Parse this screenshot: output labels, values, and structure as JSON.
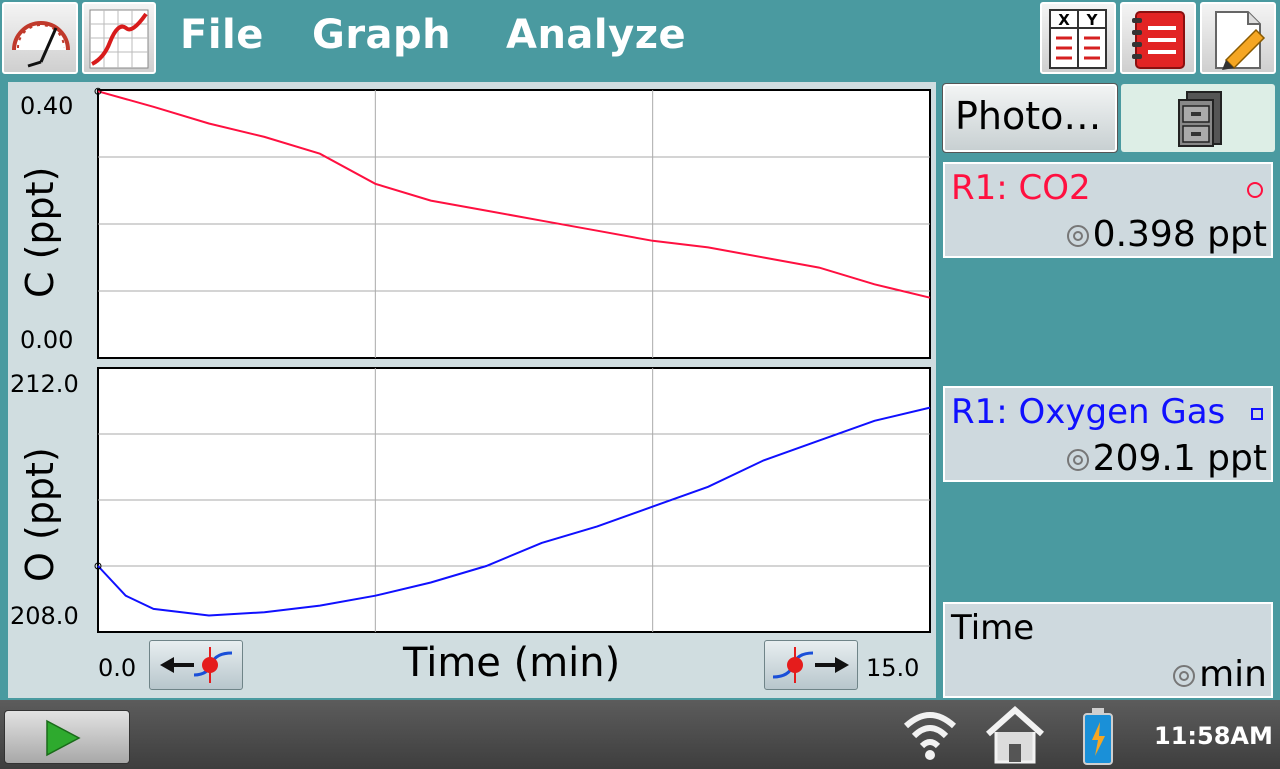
{
  "menu": {
    "file": "File",
    "graph": "Graph",
    "analyze": "Analyze"
  },
  "toolbar_icons": {
    "meter_view": "gauge-icon",
    "graph_view": "graph-icon",
    "table_view": "xy-table-icon",
    "notes": "notes-icon",
    "document": "pencil-document-icon"
  },
  "right_panel": {
    "photo_button": "Photo…",
    "file_cabinet_icon": "file-cabinet-icon"
  },
  "meters": {
    "co2": {
      "name": "R1: CO2",
      "value": "0.398 ppt",
      "color": "#ff1040"
    },
    "oxygen": {
      "name": "R1: Oxygen Gas",
      "value": "209.1 ppt",
      "color": "#1010ff"
    },
    "time": {
      "name": "Time",
      "value": "min"
    }
  },
  "graph": {
    "x_label": "Time (min)",
    "x_min_label": "0.0",
    "x_max_label": "15.0",
    "top": {
      "y_label": "C (ppt)",
      "y_max_label": "0.40",
      "y_min_label": "0.00"
    },
    "bottom": {
      "y_label": "O (ppt)",
      "y_max_label": "212.0",
      "y_min_label": "208.0"
    }
  },
  "chart_data": [
    {
      "type": "line",
      "xlabel": "Time (min)",
      "ylabel": "C (ppt)",
      "xlim": [
        0,
        15
      ],
      "ylim": [
        0,
        0.4
      ],
      "grid": true,
      "series": [
        {
          "name": "R1: CO2",
          "color": "#ff1040",
          "x": [
            0,
            1,
            2,
            3,
            4,
            5,
            6,
            7,
            8,
            9,
            10,
            11,
            12,
            13,
            14,
            15
          ],
          "y": [
            0.398,
            0.375,
            0.35,
            0.33,
            0.305,
            0.26,
            0.235,
            0.22,
            0.205,
            0.19,
            0.175,
            0.165,
            0.15,
            0.135,
            0.11,
            0.09
          ]
        }
      ]
    },
    {
      "type": "line",
      "xlabel": "Time (min)",
      "ylabel": "O (ppt)",
      "xlim": [
        0,
        15
      ],
      "ylim": [
        208,
        212
      ],
      "grid": true,
      "series": [
        {
          "name": "R1: Oxygen Gas",
          "color": "#1010ff",
          "x": [
            0,
            0.5,
            1,
            2,
            3,
            4,
            5,
            6,
            7,
            8,
            9,
            10,
            11,
            12,
            13,
            14,
            15
          ],
          "y": [
            209.0,
            208.55,
            208.35,
            208.25,
            208.3,
            208.4,
            208.55,
            208.75,
            209.0,
            209.35,
            209.6,
            209.9,
            210.2,
            210.6,
            210.9,
            211.2,
            211.4
          ]
        }
      ]
    }
  ],
  "status": {
    "clock": "11:58AM",
    "wifi_icon": "wifi-icon",
    "home_icon": "home-icon",
    "battery_icon": "battery-icon"
  }
}
